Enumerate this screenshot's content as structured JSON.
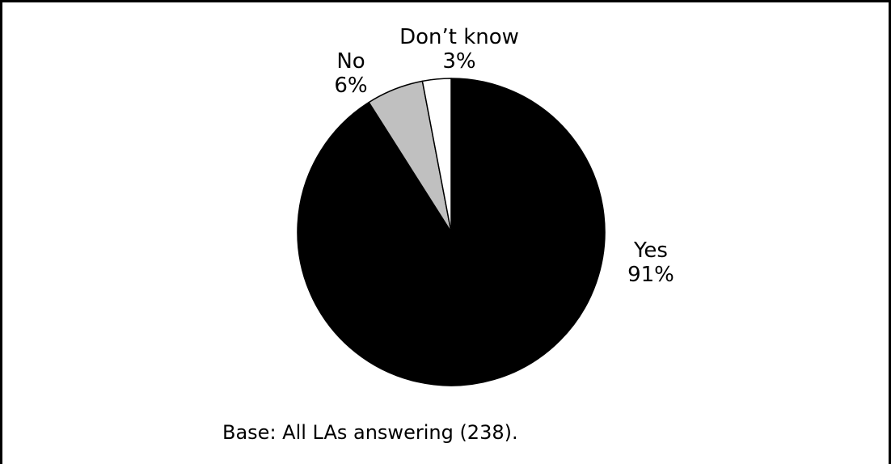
{
  "chart_data": {
    "type": "pie",
    "slices": [
      {
        "label": "Yes",
        "value": 91,
        "value_label": "91%",
        "color": "#000000"
      },
      {
        "label": "No",
        "value": 6,
        "value_label": "6%",
        "color": "#c0c0c0"
      },
      {
        "label": "Don’t know",
        "value": 3,
        "value_label": "3%",
        "color": "#ffffff"
      }
    ],
    "base_note": "Base: All LAs answering (238).",
    "title": "",
    "legend": "none"
  }
}
